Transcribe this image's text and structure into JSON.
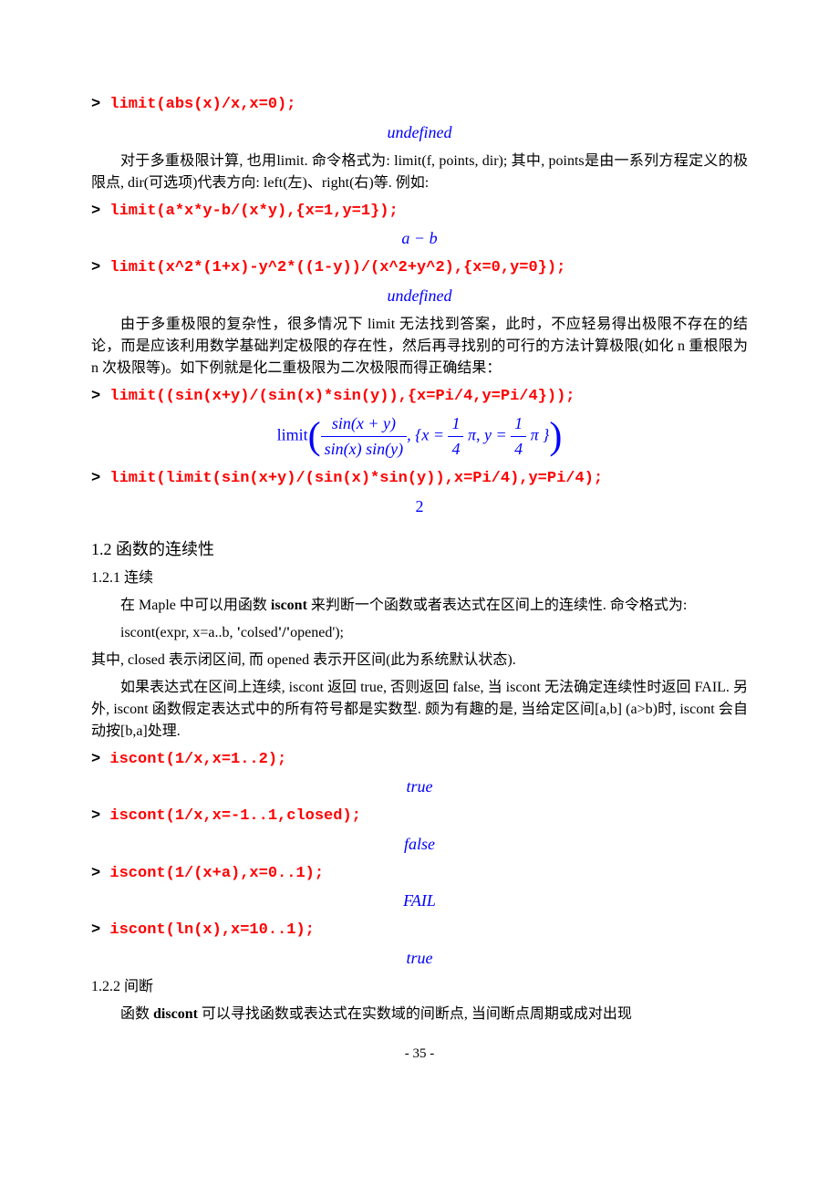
{
  "colors": {
    "cmd": "#ff0000",
    "output": "#0000ff",
    "text": "#000000",
    "bg": "#ffffff"
  },
  "fonts": {
    "mono": "Courier New",
    "serif": "Times New Roman",
    "cmd_size": 17,
    "body_size": 16,
    "math_size": 18
  },
  "lines": {
    "prompt": "> ",
    "cmd1": "limit(abs(x)/x,x=0);",
    "out1": "undefined",
    "p1": "对于多重极限计算, 也用limit. 命令格式为: limit(f, points, dir); 其中, points是由一系列方程定义的极限点, dir(可选项)代表方向: left(左)、right(右)等. 例如:",
    "cmd2": "limit(a*x*y-b/(x*y),{x=1,y=1});",
    "out2": "a − b",
    "cmd3": "limit(x^2*(1+x)-y^2*((1-y))/(x^2+y^2),{x=0,y=0});",
    "out3": "undefined",
    "p2": "由于多重极限的复杂性，很多情况下 limit 无法找到答案，此时，不应轻易得出极限不存在的结论，而是应该利用数学基础判定极限的存在性，然后再寻找别的可行的方法计算极限(如化 n 重根限为 n 次极限等)。如下例就是化二重极限为二次极限而得正确结果：",
    "cmd4": "limit((sin(x+y)/(sin(x)*sin(y)),{x=Pi/4,y=Pi/4}));",
    "out4_limit": "limit",
    "out4_num": "sin(x + y)",
    "out4_den": "sin(x) sin(y)",
    "out4_set_l": ", {x = ",
    "out4_pi": " π, y = ",
    "out4_pi2": " π }",
    "out4_frac1n": "1",
    "out4_frac1d": "4",
    "out4_frac2n": "1",
    "out4_frac2d": "4",
    "cmd5": "limit(limit(sin(x+y)/(sin(x)*sin(y)),x=Pi/4),y=Pi/4);",
    "out5": "2",
    "h2": "1.2  函数的连续性",
    "h3a": "1.2.1  连续",
    "p3a": "在 Maple 中可以用函数 ",
    "p3b": "iscont",
    "p3c": " 来判断一个函数或者表达式在区间上的连续性. 命令格式为:",
    "p4a": "iscont(expr, x=a..b, ",
    "p4b": "'",
    "p4c": "colsed",
    "p4d": "'/'",
    "p4e": "opened",
    "p4f": "');",
    "p5": "其中, closed 表示闭区间, 而 opened 表示开区间(此为系统默认状态).",
    "p6": "如果表达式在区间上连续, iscont 返回 true, 否则返回 false, 当 iscont 无法确定连续性时返回 FAIL. 另外, iscont 函数假定表达式中的所有符号都是实数型. 颇为有趣的是, 当给定区间[a,b] (a>b)时, iscont 会自动按[b,a]处理.",
    "cmd6": "iscont(1/x,x=1..2);",
    "out6": "true",
    "cmd7": "iscont(1/x,x=-1..1,closed);",
    "out7": "false",
    "cmd8": "iscont(1/(x+a),x=0..1);",
    "out8": "FAIL",
    "cmd9": "iscont(ln(x),x=10..1);",
    "out9": "true",
    "h3b": "1.2.2  间断",
    "p7a": "函数 ",
    "p7b": "discont",
    "p7c": " 可以寻找函数或表达式在实数域的间断点, 当间断点周期或成对出现",
    "pgnum": "- 35 -"
  }
}
